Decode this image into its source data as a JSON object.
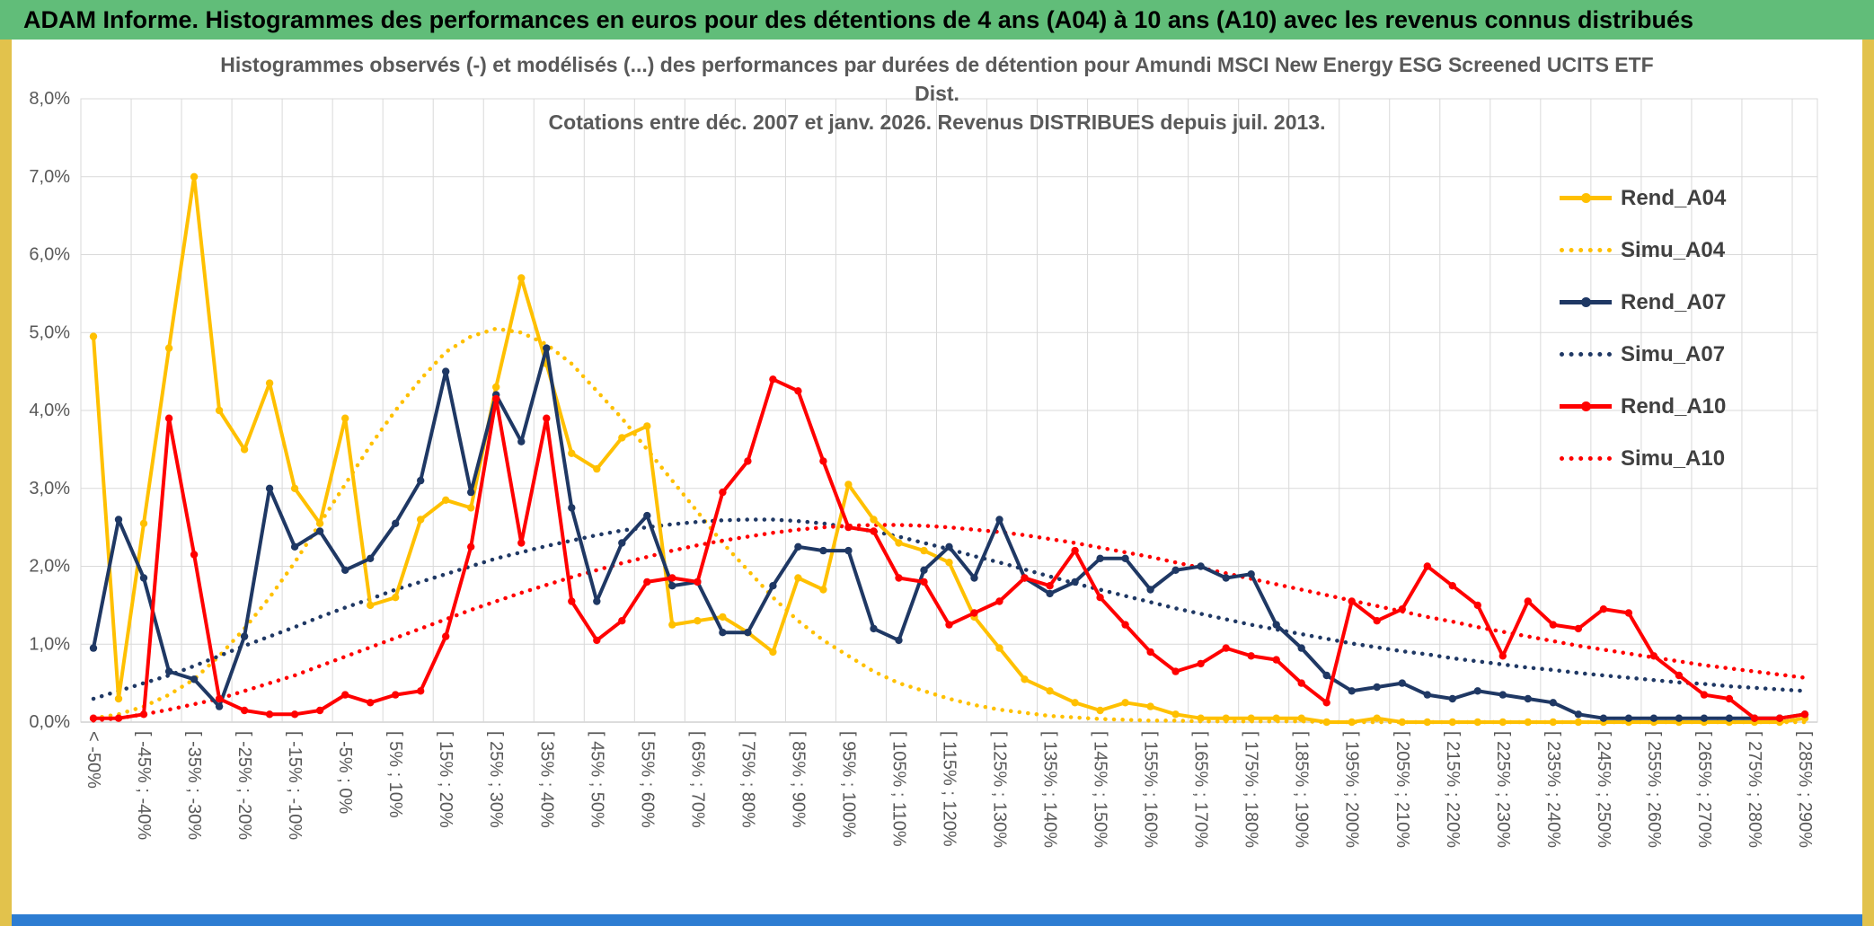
{
  "window_title": "ADAM Informe. Histogrammes des performances en euros pour des détentions de 4 ans (A04) à 10 ans (A10) avec les revenus connus distribués",
  "colors": {
    "header_bg": "#61BD79",
    "side_border": "#E2C24C",
    "bottom_bar": "#2D7DD2",
    "grid_line": "#D9D9D9",
    "axis_line": "#BFBFBF",
    "title_text": "#595959",
    "legend_text": "#404040",
    "series_gold": "#FFC000",
    "series_navy": "#1F3864",
    "series_red": "#FF0000"
  },
  "chart_data": {
    "type": "line",
    "title_lines": [
      "Histogrammes observés (-) et modélisés (...) des performances par durées de détention pour Amundi MSCI New Energy ESG Screened UCITS ETF",
      "Dist.",
      "Cotations entre déc. 2007 et janv. 2026. Revenus DISTRIBUES depuis juil. 2013."
    ],
    "legend_position": "right",
    "grid": true,
    "y_axis": {
      "max": 8,
      "ticks": [
        "0,0%",
        "1,0%",
        "2,0%",
        "3,0%",
        "4,0%",
        "5,0%",
        "6,0%",
        "7,0%",
        "8,0%"
      ]
    },
    "x_axis": {
      "n_bins": 69,
      "label_every": 2,
      "labels": [
        "< -50%",
        "[ -45% ; -40%",
        "[ -35% ; -30%",
        "[ -25% ; -20%",
        "[ -15% ; -10%",
        "[ -5% ; 0%",
        "[ 5% ; 10%",
        "[ 15% ; 20%",
        "[ 25% ; 30%",
        "[ 35% ; 40%",
        "[ 45% ; 50%",
        "[ 55% ; 60%",
        "[ 65% ; 70%",
        "[ 75% ; 80%",
        "[ 85% ; 90%",
        "[ 95% ; 100%",
        "[ 105% ; 110%",
        "[ 115% ; 120%",
        "[ 125% ; 130%",
        "[ 135% ; 140%",
        "[ 145% ; 150%",
        "[ 155% ; 160%",
        "[ 165% ; 170%",
        "[ 175% ; 180%",
        "[ 185% ; 190%",
        "[ 195% ; 200%",
        "[ 205% ; 210%",
        "[ 215% ; 220%",
        "[ 225% ; 230%",
        "[ 235% ; 240%",
        "[ 245% ; 250%",
        "[ 255% ; 260%",
        "[ 265% ; 270%",
        "[ 275% ; 280%",
        "[ 285% ; 290%"
      ]
    },
    "series": [
      {
        "name": "Rend_A04",
        "color": "#FFC000",
        "style": "solid",
        "markers": true,
        "values": [
          4.95,
          0.3,
          2.55,
          4.8,
          7.0,
          4.0,
          3.5,
          4.35,
          3.0,
          2.55,
          3.9,
          1.5,
          1.6,
          2.6,
          2.85,
          2.75,
          4.3,
          5.7,
          4.6,
          3.45,
          3.25,
          3.65,
          3.8,
          1.25,
          1.3,
          1.35,
          1.15,
          0.9,
          1.85,
          1.7,
          3.05,
          2.6,
          2.3,
          2.2,
          2.05,
          1.35,
          0.95,
          0.55,
          0.4,
          0.25,
          0.15,
          0.25,
          0.2,
          0.1,
          0.05,
          0.05,
          0.05,
          0.05,
          0.05,
          0,
          0,
          0.05,
          0,
          0,
          0,
          0,
          0,
          0,
          0,
          0,
          0,
          0,
          0,
          0,
          0,
          0,
          0,
          0,
          0.05
        ]
      },
      {
        "name": "Simu_A04",
        "color": "#FFC000",
        "style": "dotted",
        "markers": false,
        "values": [
          0.05,
          0.1,
          0.2,
          0.35,
          0.55,
          0.85,
          1.2,
          1.6,
          2.05,
          2.55,
          3.05,
          3.55,
          4.0,
          4.4,
          4.75,
          4.95,
          5.05,
          5.0,
          4.85,
          4.6,
          4.25,
          3.9,
          3.5,
          3.1,
          2.7,
          2.3,
          1.95,
          1.6,
          1.3,
          1.05,
          0.85,
          0.65,
          0.5,
          0.4,
          0.3,
          0.22,
          0.16,
          0.12,
          0.08,
          0.06,
          0.04,
          0.03,
          0.02,
          0.02,
          0.01,
          0.01,
          0.01,
          0.01,
          0.01,
          0,
          0,
          0,
          0,
          0,
          0,
          0,
          0,
          0,
          0,
          0,
          0,
          0,
          0,
          0,
          0,
          0,
          0,
          0,
          0
        ]
      },
      {
        "name": "Rend_A07",
        "color": "#1F3864",
        "style": "solid",
        "markers": true,
        "values": [
          0.95,
          2.6,
          1.85,
          0.65,
          0.55,
          0.2,
          1.1,
          3.0,
          2.25,
          2.45,
          1.95,
          2.1,
          2.55,
          3.1,
          4.5,
          2.95,
          4.2,
          3.6,
          4.8,
          2.75,
          1.55,
          2.3,
          2.65,
          1.75,
          1.8,
          1.15,
          1.15,
          1.75,
          2.25,
          2.2,
          2.2,
          1.2,
          1.05,
          1.95,
          2.25,
          1.85,
          2.6,
          1.85,
          1.65,
          1.8,
          2.1,
          2.1,
          1.7,
          1.95,
          2.0,
          1.85,
          1.9,
          1.25,
          0.95,
          0.6,
          0.4,
          0.45,
          0.5,
          0.35,
          0.3,
          0.4,
          0.35,
          0.3,
          0.25,
          0.1,
          0.05,
          0.05,
          0.05,
          0.05,
          0.05,
          0.05,
          0.05,
          0.05,
          0.1
        ]
      },
      {
        "name": "Simu_A07",
        "color": "#1F3864",
        "style": "dotted",
        "markers": false,
        "values": [
          0.3,
          0.4,
          0.5,
          0.6,
          0.72,
          0.85,
          0.98,
          1.1,
          1.22,
          1.35,
          1.47,
          1.58,
          1.7,
          1.8,
          1.9,
          2.0,
          2.1,
          2.18,
          2.26,
          2.33,
          2.4,
          2.46,
          2.5,
          2.54,
          2.57,
          2.59,
          2.6,
          2.6,
          2.58,
          2.55,
          2.5,
          2.45,
          2.38,
          2.3,
          2.22,
          2.13,
          2.05,
          1.96,
          1.87,
          1.78,
          1.7,
          1.62,
          1.54,
          1.46,
          1.39,
          1.32,
          1.25,
          1.19,
          1.13,
          1.07,
          1.01,
          0.96,
          0.91,
          0.87,
          0.82,
          0.78,
          0.74,
          0.7,
          0.67,
          0.63,
          0.6,
          0.57,
          0.54,
          0.51,
          0.49,
          0.46,
          0.44,
          0.42,
          0.4
        ]
      },
      {
        "name": "Rend_A10",
        "color": "#FF0000",
        "style": "solid",
        "markers": true,
        "values": [
          0.05,
          0.05,
          0.1,
          3.9,
          2.15,
          0.3,
          0.15,
          0.1,
          0.1,
          0.15,
          0.35,
          0.25,
          0.35,
          0.4,
          1.1,
          2.25,
          4.15,
          2.3,
          3.9,
          1.55,
          1.05,
          1.3,
          1.8,
          1.85,
          1.8,
          2.95,
          3.35,
          4.4,
          4.25,
          3.35,
          2.5,
          2.45,
          1.85,
          1.8,
          1.25,
          1.4,
          1.55,
          1.85,
          1.75,
          2.2,
          1.6,
          1.25,
          0.9,
          0.65,
          0.75,
          0.95,
          0.85,
          0.8,
          0.5,
          0.25,
          1.55,
          1.3,
          1.45,
          2.0,
          1.75,
          1.5,
          0.85,
          1.55,
          1.25,
          1.2,
          1.45,
          1.4,
          0.85,
          0.6,
          0.35,
          0.3,
          0.05,
          0.05,
          0.1
        ]
      },
      {
        "name": "Simu_A10",
        "color": "#FF0000",
        "style": "dotted",
        "markers": false,
        "values": [
          0.02,
          0.05,
          0.1,
          0.16,
          0.23,
          0.3,
          0.4,
          0.5,
          0.6,
          0.72,
          0.84,
          0.96,
          1.08,
          1.2,
          1.32,
          1.44,
          1.55,
          1.66,
          1.76,
          1.86,
          1.95,
          2.04,
          2.12,
          2.2,
          2.27,
          2.33,
          2.38,
          2.43,
          2.47,
          2.5,
          2.52,
          2.53,
          2.53,
          2.52,
          2.5,
          2.47,
          2.44,
          2.4,
          2.35,
          2.3,
          2.24,
          2.18,
          2.12,
          2.05,
          1.98,
          1.91,
          1.84,
          1.77,
          1.7,
          1.63,
          1.56,
          1.49,
          1.42,
          1.35,
          1.29,
          1.22,
          1.16,
          1.1,
          1.04,
          0.98,
          0.93,
          0.88,
          0.83,
          0.78,
          0.73,
          0.69,
          0.65,
          0.61,
          0.57
        ]
      }
    ]
  }
}
